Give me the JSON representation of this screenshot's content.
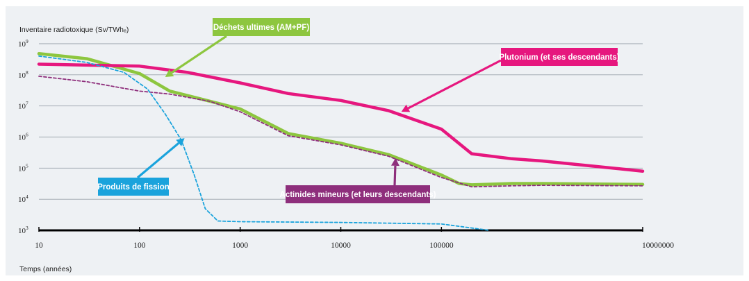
{
  "chart_data": {
    "type": "line",
    "ylabel": "Inventaire radiotoxique (Sv/TWhₑ)",
    "xlabel": "Temps (années)",
    "x_scale": "log",
    "y_scale": "log",
    "xlim": [
      10,
      10000000
    ],
    "ylim": [
      1000,
      1000000000
    ],
    "x_ticks": [
      {
        "value": 10,
        "label": "10"
      },
      {
        "value": 100,
        "label": "100"
      },
      {
        "value": 1000,
        "label": "1000"
      },
      {
        "value": 10000,
        "label": "10000"
      },
      {
        "value": 100000,
        "label": "100000"
      },
      {
        "value": 10000000,
        "label": "10000000"
      }
    ],
    "y_ticks": [
      {
        "value": 1000000000,
        "base": "10",
        "exp": "9"
      },
      {
        "value": 100000000,
        "base": "10",
        "exp": "8"
      },
      {
        "value": 10000000,
        "base": "10",
        "exp": "7"
      },
      {
        "value": 1000000,
        "base": "10",
        "exp": "6"
      },
      {
        "value": 100000,
        "base": "10",
        "exp": "5"
      },
      {
        "value": 10000,
        "base": "10",
        "exp": "4"
      },
      {
        "value": 1000,
        "base": "10",
        "exp": "3"
      }
    ],
    "grid": true,
    "series": [
      {
        "name": "Déchets ultimes (AM+PF)",
        "color": "#8dc63f",
        "style": "solid",
        "points": [
          [
            10,
            480000000
          ],
          [
            30,
            330000000
          ],
          [
            100,
            110000000
          ],
          [
            200,
            30000000
          ],
          [
            400,
            17000000
          ],
          [
            1000,
            8000000
          ],
          [
            3000,
            1300000
          ],
          [
            10000,
            630000
          ],
          [
            30000,
            270000
          ],
          [
            100000,
            60000
          ],
          [
            150000,
            32000
          ],
          [
            200000,
            29000
          ],
          [
            500000,
            32000
          ],
          [
            1000000,
            32000
          ],
          [
            10000000,
            30000
          ]
        ]
      },
      {
        "name": "Plutonium (et ses descendants)",
        "color": "#e6177e",
        "style": "solid",
        "points": [
          [
            10,
            220000000
          ],
          [
            100,
            190000000
          ],
          [
            300,
            120000000
          ],
          [
            1000,
            55000000
          ],
          [
            3000,
            25000000
          ],
          [
            10000,
            15000000
          ],
          [
            30000,
            7000000
          ],
          [
            100000,
            1800000
          ],
          [
            200000,
            290000
          ],
          [
            500000,
            200000
          ],
          [
            1000000,
            170000
          ],
          [
            10000000,
            80000
          ]
        ]
      },
      {
        "name": "Actinides mineurs (et leurs descendants)",
        "color": "#8e2f7c",
        "style": "dashed",
        "points": [
          [
            10,
            90000000
          ],
          [
            30,
            60000000
          ],
          [
            100,
            30000000
          ],
          [
            200,
            24000000
          ],
          [
            500,
            14000000
          ],
          [
            1000,
            6500000
          ],
          [
            3000,
            1100000
          ],
          [
            10000,
            560000
          ],
          [
            30000,
            240000
          ],
          [
            100000,
            50000
          ],
          [
            200000,
            25000
          ],
          [
            500000,
            27000
          ],
          [
            1000000,
            28000
          ],
          [
            10000000,
            27000
          ]
        ]
      },
      {
        "name": "Produits de fission",
        "color": "#1aa3dc",
        "style": "dashed",
        "points": [
          [
            10,
            400000000
          ],
          [
            30,
            250000000
          ],
          [
            70,
            120000000
          ],
          [
            120,
            35000000
          ],
          [
            180,
            5500000
          ],
          [
            260,
            800000
          ],
          [
            350,
            60000
          ],
          [
            450,
            5000
          ],
          [
            600,
            2000
          ],
          [
            1000,
            1900
          ],
          [
            10000,
            1800
          ],
          [
            100000,
            1600
          ],
          [
            300000,
            1000
          ]
        ]
      }
    ],
    "callouts": [
      {
        "label": "Déchets ultimes (AM+PF)",
        "color": "#8dc63f",
        "arrow_to": [
          180,
          85000000
        ]
      },
      {
        "label": "Plutonium (et ses descendants)",
        "color": "#e6177e",
        "arrow_to": [
          40000,
          6500000
        ]
      },
      {
        "label": "Produits de fission",
        "color": "#1aa3dc",
        "arrow_to": [
          280,
          920000
        ]
      },
      {
        "label": "Actinides mineurs (et leurs descendants)",
        "color": "#8e2f7c",
        "arrow_to": [
          35000,
          210000
        ]
      }
    ],
    "grid_color": "#9aa3ab",
    "axis_color": "#000000"
  }
}
